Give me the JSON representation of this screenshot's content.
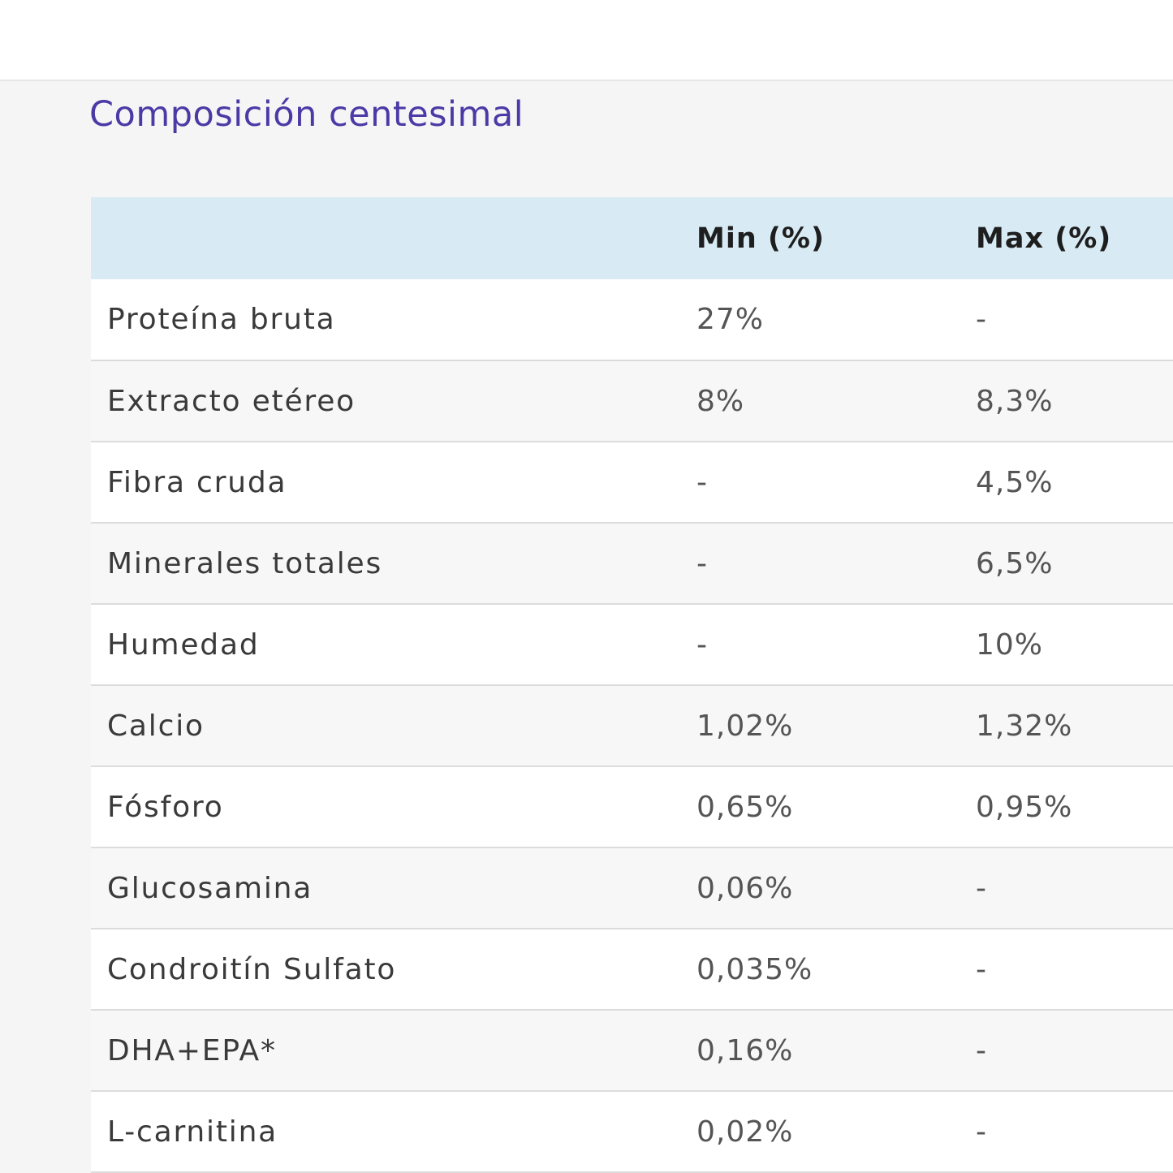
{
  "section": {
    "title": "Composición centesimal"
  },
  "table": {
    "headers": [
      "",
      "Min (%)",
      "Max (%)"
    ],
    "rows": [
      {
        "nutrient": "Proteína bruta",
        "min": "27%",
        "max": "-"
      },
      {
        "nutrient": "Extracto etéreo",
        "min": "8%",
        "max": "8,3%"
      },
      {
        "nutrient": "Fibra cruda",
        "min": "-",
        "max": "4,5%"
      },
      {
        "nutrient": "Minerales totales",
        "min": "-",
        "max": "6,5%"
      },
      {
        "nutrient": "Humedad",
        "min": "-",
        "max": "10%"
      },
      {
        "nutrient": "Calcio",
        "min": "1,02%",
        "max": "1,32%"
      },
      {
        "nutrient": "Fósforo",
        "min": "0,65%",
        "max": "0,95%"
      },
      {
        "nutrient": "Glucosamina",
        "min": "0,06%",
        "max": "-"
      },
      {
        "nutrient": "Condroitín Sulfato",
        "min": "0,035%",
        "max": "-"
      },
      {
        "nutrient": "DHA+EPA*",
        "min": "0,16%",
        "max": "-"
      },
      {
        "nutrient": "L-carnitina",
        "min": "0,02%",
        "max": "-"
      }
    ]
  },
  "colors": {
    "title": "#4b3aa6",
    "header_bg": "#d8ebf4",
    "section_bg": "#f5f5f5"
  }
}
